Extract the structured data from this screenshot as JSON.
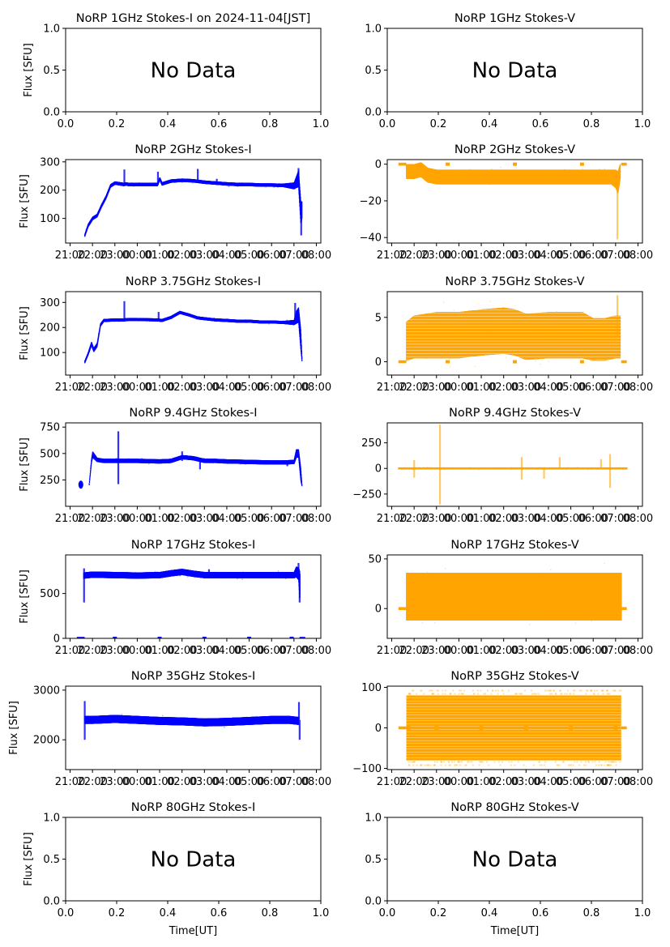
{
  "figure": {
    "date_label": "2024-11-04[JST]",
    "xlabel": "Time[UT]",
    "ylabel": "Flux [SFU]",
    "colors": {
      "stokes_i": "#0000ff",
      "stokes_v": "#ffa500",
      "axis": "#000000"
    }
  },
  "chart_data": [
    {
      "id": "1ghz-i",
      "type": "scatter",
      "title": "NoRP 1GHz Stokes-I on 2024-11-04[JST]",
      "ylabel": "Flux [SFU]",
      "xlabel": "",
      "no_data": true,
      "annotation": "No Data",
      "xlim": [
        0,
        1
      ],
      "ylim": [
        0,
        1
      ],
      "xticks": [
        "0.0",
        "0.2",
        "0.4",
        "0.6",
        "0.8",
        "1.0"
      ],
      "yticks": [
        {
          "v": 0,
          "label": "0.0"
        },
        {
          "v": 0.5,
          "label": "0.5"
        },
        {
          "v": 1,
          "label": "1.0"
        }
      ]
    },
    {
      "id": "1ghz-v",
      "type": "scatter",
      "title": "NoRP 1GHz Stokes-V",
      "ylabel": "",
      "xlabel": "",
      "no_data": true,
      "annotation": "No Data",
      "xlim": [
        0,
        1
      ],
      "ylim": [
        0,
        1
      ],
      "xticks": [
        "0.0",
        "0.2",
        "0.4",
        "0.6",
        "0.8",
        "1.0"
      ],
      "yticks": [
        {
          "v": 0,
          "label": "0.0"
        },
        {
          "v": 0.5,
          "label": "0.5"
        },
        {
          "v": 1,
          "label": "1.0"
        }
      ]
    },
    {
      "id": "2ghz-i",
      "type": "scatter",
      "series_color": "stokes_i",
      "title": "NoRP 2GHz Stokes-I",
      "ylabel": "Flux [SFU]",
      "xlabel": "",
      "xlim_hours": [
        20.8,
        32.2
      ],
      "ylim": [
        13,
        308
      ],
      "yticks": [
        {
          "v": 100,
          "label": "100"
        },
        {
          "v": 200,
          "label": "200"
        },
        {
          "v": 300,
          "label": "300"
        }
      ],
      "x_hours": [
        21.65,
        21.8,
        22.0,
        22.2,
        22.4,
        22.6,
        22.8,
        23.0,
        23.4,
        23.5,
        23.6,
        24.0,
        24.9,
        25.0,
        25.1,
        25.5,
        26.0,
        26.5,
        27.0,
        27.5,
        28.0,
        28.5,
        29.0,
        29.5,
        30.0,
        30.5,
        31.0,
        31.1,
        31.2,
        31.3,
        31.35
      ],
      "y_center": [
        40,
        75,
        100,
        110,
        145,
        175,
        215,
        225,
        220,
        222,
        220,
        220,
        220,
        240,
        222,
        232,
        235,
        233,
        228,
        225,
        222,
        220,
        220,
        218,
        218,
        217,
        215,
        228,
        240,
        120,
        130
      ],
      "y_spread": [
        5,
        6,
        6,
        6,
        6,
        6,
        6,
        6,
        6,
        6,
        6,
        6,
        6,
        6,
        6,
        6,
        6,
        6,
        6,
        6,
        6,
        6,
        6,
        6,
        6,
        6,
        12,
        20,
        30,
        40,
        30
      ],
      "spikes": [
        {
          "x": 23.42,
          "y": 273
        },
        {
          "x": 24.92,
          "y": 265
        },
        {
          "x": 26.7,
          "y": 275
        },
        {
          "x": 27.55,
          "y": 240
        },
        {
          "x": 31.2,
          "y": 278
        },
        {
          "x": 31.32,
          "y": 40
        }
      ]
    },
    {
      "id": "2ghz-v",
      "type": "scatter",
      "series_color": "stokes_v",
      "title": "NoRP 2GHz Stokes-V",
      "ylabel": "",
      "xlabel": "",
      "xlim_hours": [
        20.8,
        32.2
      ],
      "ylim": [
        -43,
        2.5
      ],
      "yticks": [
        {
          "v": -40,
          "label": "−40"
        },
        {
          "v": -20,
          "label": "−20"
        },
        {
          "v": 0,
          "label": "0"
        }
      ],
      "x_hours": [
        21.65,
        22.0,
        22.3,
        22.6,
        23.0,
        24.0,
        25.0,
        26.0,
        27.0,
        28.0,
        29.0,
        30.0,
        30.8,
        31.0,
        31.1,
        31.2
      ],
      "y_center": [
        -4,
        -4,
        -3,
        -6,
        -7,
        -7,
        -7,
        -7,
        -7,
        -7,
        -7,
        -7,
        -7,
        -8,
        -10,
        -4
      ],
      "y_spread": [
        4,
        4,
        4,
        4,
        4,
        4,
        4,
        4,
        4,
        4,
        4,
        4,
        4,
        5,
        6,
        4
      ],
      "baseline": {
        "y": 0,
        "x_ranges": [
          [
            21.3,
            21.65
          ],
          [
            31.25,
            31.5
          ]
        ],
        "dots_x": [
          23.5,
          26.5,
          29.5
        ]
      },
      "spikes": [
        {
          "x": 31.08,
          "y": -41
        }
      ]
    },
    {
      "id": "375ghz-i",
      "type": "scatter",
      "series_color": "stokes_i",
      "title": "NoRP 3.75GHz Stokes-I",
      "ylabel": "Flux [SFU]",
      "xlabel": "",
      "xlim_hours": [
        20.8,
        32.2
      ],
      "ylim": [
        10,
        343
      ],
      "yticks": [
        {
          "v": 100,
          "label": "100"
        },
        {
          "v": 200,
          "label": "200"
        },
        {
          "v": 300,
          "label": "300"
        }
      ],
      "x_hours": [
        21.65,
        21.8,
        21.95,
        22.05,
        22.2,
        22.35,
        22.5,
        23.0,
        23.4,
        23.6,
        24.0,
        24.9,
        25.1,
        25.5,
        25.9,
        26.3,
        26.7,
        27.0,
        27.5,
        28.0,
        28.5,
        29.0,
        29.5,
        30.0,
        30.5,
        31.0,
        31.1,
        31.2,
        31.3,
        31.35
      ],
      "y_center": [
        62,
        95,
        135,
        110,
        130,
        210,
        228,
        230,
        230,
        232,
        232,
        230,
        228,
        240,
        260,
        250,
        238,
        235,
        230,
        228,
        225,
        225,
        222,
        222,
        220,
        220,
        240,
        250,
        150,
        75
      ],
      "y_spread": [
        5,
        6,
        8,
        8,
        8,
        6,
        6,
        6,
        6,
        6,
        6,
        6,
        6,
        6,
        6,
        6,
        6,
        6,
        6,
        6,
        6,
        6,
        6,
        6,
        6,
        10,
        25,
        30,
        40,
        10
      ],
      "spikes": [
        {
          "x": 23.42,
          "y": 305
        },
        {
          "x": 24.95,
          "y": 262
        },
        {
          "x": 31.05,
          "y": 298
        }
      ]
    },
    {
      "id": "375ghz-v",
      "type": "scatter",
      "series_color": "stokes_v",
      "title": "NoRP 3.75GHz Stokes-V",
      "ylabel": "",
      "xlabel": "",
      "xlim_hours": [
        20.8,
        32.2
      ],
      "ylim": [
        -1.5,
        7.9
      ],
      "yticks": [
        {
          "v": 0,
          "label": "0"
        },
        {
          "v": 5,
          "label": "5"
        }
      ],
      "x_hours": [
        21.65,
        22.0,
        23.0,
        23.5,
        24.0,
        25.0,
        26.0,
        26.5,
        27.0,
        28.0,
        29.0,
        29.5,
        30.0,
        30.5,
        31.0,
        31.2
      ],
      "y_center": [
        2.3,
        2.8,
        3.0,
        3.0,
        3.0,
        3.3,
        3.5,
        3.3,
        2.8,
        3.0,
        3.0,
        3.0,
        2.5,
        2.5,
        2.8,
        2.8
      ],
      "y_spread": [
        2.2,
        2.4,
        2.6,
        2.6,
        2.6,
        2.6,
        2.6,
        2.6,
        2.6,
        2.6,
        2.6,
        2.6,
        2.4,
        2.4,
        2.4,
        2.4
      ],
      "banded": true,
      "baseline": {
        "y": 0,
        "x_ranges": [
          [
            21.3,
            21.65
          ],
          [
            31.25,
            31.5
          ]
        ],
        "dots_x": [
          23.5,
          26.5,
          29.5
        ]
      },
      "spikes": [
        {
          "x": 31.08,
          "y": 7.5
        }
      ]
    },
    {
      "id": "94ghz-i",
      "type": "scatter",
      "series_color": "stokes_i",
      "title": "NoRP 9.4GHz Stokes-I",
      "ylabel": "Flux [SFU]",
      "xlabel": "",
      "xlim_hours": [
        20.8,
        32.2
      ],
      "ylim": [
        0,
        790
      ],
      "yticks": [
        {
          "v": 250,
          "label": "250"
        },
        {
          "v": 500,
          "label": "500"
        },
        {
          "v": 750,
          "label": "750"
        }
      ],
      "x_hours": [
        21.85,
        21.95,
        22.0,
        22.2,
        22.5,
        23.0,
        24.0,
        25.0,
        25.5,
        26.0,
        26.5,
        27.0,
        27.5,
        28.0,
        29.0,
        30.0,
        30.5,
        31.0,
        31.1,
        31.2,
        31.3,
        31.35
      ],
      "y_center": [
        210,
        430,
        490,
        440,
        430,
        430,
        430,
        425,
        430,
        465,
        455,
        430,
        430,
        425,
        420,
        415,
        415,
        420,
        500,
        500,
        300,
        200
      ],
      "y_spread": [
        10,
        20,
        30,
        20,
        20,
        20,
        20,
        20,
        20,
        20,
        20,
        20,
        20,
        20,
        20,
        20,
        20,
        20,
        40,
        40,
        60,
        10
      ],
      "extra_points": [
        {
          "x": 21.48,
          "y": 205
        }
      ],
      "spikes": [
        {
          "x": 23.15,
          "y": 710
        },
        {
          "x": 23.15,
          "y": 210
        },
        {
          "x": 26.0,
          "y": 520
        },
        {
          "x": 26.8,
          "y": 350
        },
        {
          "x": 30.7,
          "y": 380
        }
      ]
    },
    {
      "id": "94ghz-v",
      "type": "scatter",
      "series_color": "stokes_v",
      "title": "NoRP 9.4GHz Stokes-V",
      "ylabel": "",
      "xlabel": "",
      "xlim_hours": [
        20.8,
        32.2
      ],
      "ylim": [
        -370,
        445
      ],
      "yticks": [
        {
          "v": -250,
          "label": "−250"
        },
        {
          "v": 0,
          "label": "0"
        },
        {
          "v": 250,
          "label": "250"
        }
      ],
      "x_hours": [
        21.3,
        31.5
      ],
      "y_center": [
        0,
        0
      ],
      "y_spread": [
        10,
        10
      ],
      "spikes": [
        {
          "x": 23.15,
          "y": 430
        },
        {
          "x": 23.15,
          "y": -350
        },
        {
          "x": 22.0,
          "y": 80
        },
        {
          "x": 22.0,
          "y": -90
        },
        {
          "x": 26.8,
          "y": 110
        },
        {
          "x": 26.8,
          "y": -110
        },
        {
          "x": 30.35,
          "y": 90
        },
        {
          "x": 30.75,
          "y": 140
        },
        {
          "x": 30.75,
          "y": -190
        },
        {
          "x": 27.8,
          "y": -100
        },
        {
          "x": 28.5,
          "y": 110
        }
      ]
    },
    {
      "id": "17ghz-i",
      "type": "scatter",
      "series_color": "stokes_i",
      "title": "NoRP 17GHz Stokes-I",
      "ylabel": "Flux [SFU]",
      "xlabel": "",
      "xlim_hours": [
        20.8,
        32.2
      ],
      "ylim": [
        0,
        930
      ],
      "yticks": [
        {
          "v": 0,
          "label": "0"
        },
        {
          "v": 500,
          "label": "500"
        }
      ],
      "x_hours": [
        21.6,
        22.0,
        23.0,
        24.0,
        25.0,
        25.5,
        26.0,
        26.5,
        27.0,
        28.0,
        29.0,
        30.0,
        31.0,
        31.1,
        31.2,
        31.25
      ],
      "y_center": [
        700,
        710,
        705,
        700,
        705,
        725,
        740,
        720,
        705,
        705,
        705,
        705,
        705,
        740,
        720,
        600
      ],
      "y_spread": [
        35,
        35,
        35,
        35,
        35,
        35,
        35,
        35,
        35,
        35,
        35,
        35,
        35,
        60,
        70,
        150
      ],
      "baseline": {
        "y": 0,
        "x_ranges": [
          [
            21.3,
            21.65
          ],
          [
            31.25,
            31.5
          ]
        ],
        "dots_x": [
          23.0,
          25.0,
          27.0,
          29.0,
          30.9
        ]
      },
      "spikes": [
        {
          "x": 21.62,
          "y": 400
        },
        {
          "x": 21.62,
          "y": 780
        },
        {
          "x": 31.25,
          "y": 400
        },
        {
          "x": 31.2,
          "y": 840
        },
        {
          "x": 27.2,
          "y": 770
        }
      ]
    },
    {
      "id": "17ghz-v",
      "type": "scatter",
      "series_color": "stokes_v",
      "title": "NoRP 17GHz Stokes-V",
      "ylabel": "",
      "xlabel": "",
      "xlim_hours": [
        20.8,
        32.2
      ],
      "ylim": [
        -30,
        54
      ],
      "yticks": [
        {
          "v": 0,
          "label": "0"
        },
        {
          "v": 50,
          "label": "50"
        }
      ],
      "x_hours": [
        21.65,
        31.25
      ],
      "y_center": [
        12,
        12
      ],
      "y_spread": [
        24,
        24
      ],
      "baseline": {
        "y": 0,
        "x_ranges": [
          [
            21.3,
            21.65
          ],
          [
            31.25,
            31.5
          ]
        ],
        "dots_x": []
      },
      "spikes": []
    },
    {
      "id": "35ghz-i",
      "type": "scatter",
      "series_color": "stokes_i",
      "title": "NoRP 35GHz Stokes-I",
      "ylabel": "Flux [SFU]",
      "xlabel": "",
      "xlim_hours": [
        20.8,
        32.2
      ],
      "ylim": [
        1400,
        3080
      ],
      "yticks": [
        {
          "v": 2000,
          "label": "2000"
        },
        {
          "v": 3000,
          "label": "3000"
        }
      ],
      "x_hours": [
        21.65,
        22.0,
        23.0,
        24.0,
        25.0,
        26.0,
        27.0,
        28.0,
        29.0,
        30.0,
        30.8,
        31.2
      ],
      "y_center": [
        2400,
        2400,
        2420,
        2400,
        2380,
        2370,
        2350,
        2360,
        2380,
        2400,
        2400,
        2380
      ],
      "y_spread": [
        80,
        80,
        80,
        80,
        80,
        80,
        80,
        80,
        80,
        80,
        80,
        80
      ],
      "spikes": [
        {
          "x": 21.65,
          "y": 2000
        },
        {
          "x": 21.65,
          "y": 2780
        },
        {
          "x": 31.25,
          "y": 2000
        },
        {
          "x": 31.22,
          "y": 2760
        }
      ]
    },
    {
      "id": "35ghz-v",
      "type": "scatter",
      "series_color": "stokes_v",
      "title": "NoRP 35GHz Stokes-V",
      "ylabel": "",
      "xlabel": "",
      "xlim_hours": [
        20.8,
        32.2
      ],
      "ylim": [
        -103,
        103
      ],
      "yticks": [
        {
          "v": -100,
          "label": "−100"
        },
        {
          "v": 0,
          "label": "0"
        },
        {
          "v": 100,
          "label": "100"
        }
      ],
      "x_hours": [
        21.65,
        31.25
      ],
      "levels_step": 7,
      "levels_range": [
        -77,
        77
      ],
      "faint_levels": [
        -92,
        -84,
        84,
        92
      ],
      "baseline": {
        "y": 0,
        "x_ranges": [
          [
            21.3,
            21.65
          ],
          [
            31.25,
            31.5
          ]
        ],
        "dots_x": [
          21.75,
          23.0,
          25.0,
          27.0,
          29.0,
          31.0
        ]
      },
      "spikes": []
    },
    {
      "id": "80ghz-i",
      "type": "scatter",
      "title": "NoRP 80GHz Stokes-I",
      "ylabel": "Flux [SFU]",
      "xlabel": "Time[UT]",
      "no_data": true,
      "annotation": "No Data",
      "xlim": [
        0,
        1
      ],
      "ylim": [
        0,
        1
      ],
      "xticks": [
        "0.0",
        "0.2",
        "0.4",
        "0.6",
        "0.8",
        "1.0"
      ],
      "yticks": [
        {
          "v": 0,
          "label": "0.0"
        },
        {
          "v": 0.5,
          "label": "0.5"
        },
        {
          "v": 1,
          "label": "1.0"
        }
      ]
    },
    {
      "id": "80ghz-v",
      "type": "scatter",
      "title": "NoRP 80GHz Stokes-V",
      "ylabel": "",
      "xlabel": "Time[UT]",
      "no_data": true,
      "annotation": "No Data",
      "xlim": [
        0,
        1
      ],
      "ylim": [
        0,
        1
      ],
      "xticks": [
        "0.0",
        "0.2",
        "0.4",
        "0.6",
        "0.8",
        "1.0"
      ],
      "yticks": [
        {
          "v": 0,
          "label": "0.0"
        },
        {
          "v": 0.5,
          "label": "0.5"
        },
        {
          "v": 1,
          "label": "1.0"
        }
      ]
    }
  ],
  "time_ticks": {
    "hours": [
      21,
      22,
      23,
      24,
      25,
      26,
      27,
      28,
      29,
      30,
      31,
      32
    ],
    "labels": [
      "21:00",
      "22:00",
      "23:00",
      "00:00",
      "01:00",
      "02:00",
      "03:00",
      "04:00",
      "05:00",
      "06:00",
      "07:00",
      "08:00"
    ]
  }
}
